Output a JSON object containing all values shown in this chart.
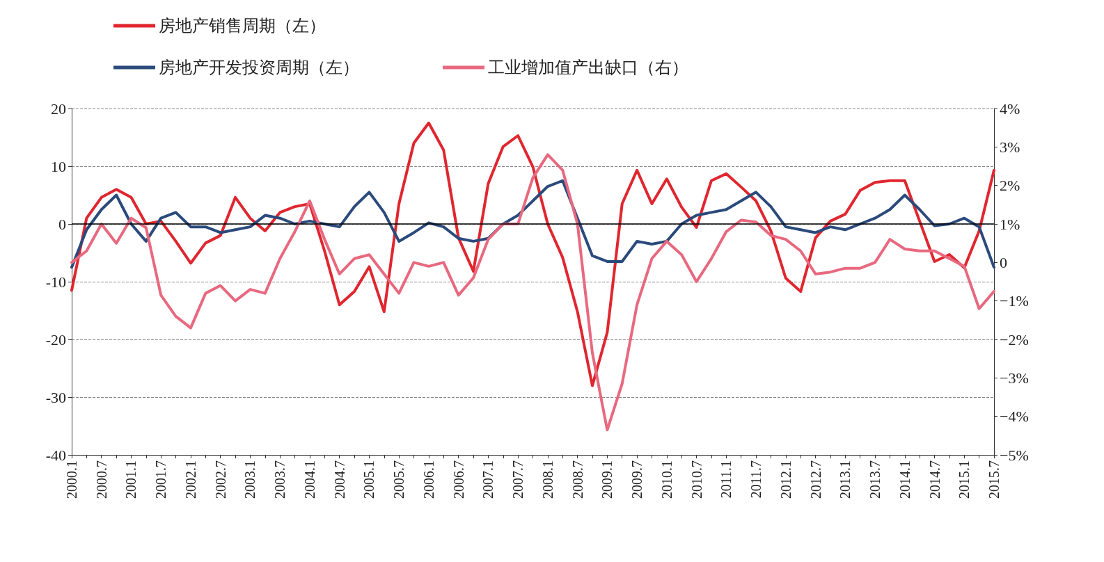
{
  "chart_data": {
    "type": "line",
    "categories": [
      "2000.1",
      null,
      "2000.7",
      null,
      "2001.1",
      null,
      "2001.7",
      null,
      "2002.1",
      null,
      "2002.7",
      null,
      "2003.1",
      null,
      "2003.7",
      null,
      "2004.1",
      null,
      "2004.7",
      null,
      "2005.1",
      null,
      "2005.7",
      null,
      "2006.1",
      null,
      "2006.7",
      null,
      "2007.1",
      null,
      "2007.7",
      null,
      "2008.1",
      null,
      "2008.7",
      null,
      "2009.1",
      null,
      "2009.7",
      null,
      "2010.1",
      null,
      "2010.7",
      null,
      "2011.1",
      null,
      "2011.7",
      null,
      "2012.1",
      null,
      "2012.7",
      null,
      "2013.1",
      null,
      "2013.7",
      null,
      "2014.1",
      null,
      "2014.7",
      null,
      "2015.1",
      null,
      "2015.7"
    ],
    "series": [
      {
        "name": "房地产销售周期（左）",
        "color": "#e0262f",
        "values": [
          -11.5,
          1,
          4.6,
          6,
          4.6,
          0,
          0.5,
          -3,
          -6.8,
          -3.3,
          -2,
          4.6,
          1,
          -1.2,
          2,
          3,
          3.5,
          -4.7,
          -14,
          -11.7,
          -7.4,
          -15.2,
          3.5,
          14,
          17.5,
          12.8,
          -2.4,
          -8.2,
          7,
          13.4,
          15.3,
          9.9,
          0,
          -5.8,
          -15.2,
          -28,
          -18.8,
          3.5,
          9.3,
          3.5,
          7.8,
          2.9,
          -0.6,
          7.5,
          8.7,
          6.4,
          4,
          -1.2,
          -9.4,
          -11.7,
          -2.4,
          0.5,
          1.7,
          5.8,
          7.2,
          7.5,
          7.5,
          0.5,
          -6.5,
          -5.3,
          -7.6,
          -1.2,
          9.3
        ]
      },
      {
        "name": "房地产开发投资周期（左）",
        "color": "#2b4a7c",
        "values": [
          -7.5,
          -1,
          2.5,
          5,
          0,
          -3,
          1,
          2,
          -0.5,
          -0.5,
          -1.5,
          -1,
          -0.5,
          1.5,
          1,
          0,
          0.5,
          0,
          -0.5,
          3,
          5.5,
          2,
          -3,
          -1.5,
          0.2,
          -0.5,
          -2.5,
          -3,
          -2.5,
          0,
          1.5,
          4,
          6.5,
          7.5,
          1,
          -5.5,
          -6.5,
          -6.5,
          -3,
          -3.5,
          -3,
          0,
          1.5,
          2,
          2.5,
          4,
          5.5,
          3,
          -0.5,
          -1,
          -1.5,
          -0.5,
          -1,
          0,
          1,
          2.5,
          5,
          2.5,
          -0.3,
          0,
          1,
          -0.5,
          -7.5
        ]
      },
      {
        "name": "工业增加值产出缺口（右）",
        "color": "#e8697f",
        "axis": "y2",
        "values": [
          0,
          0.3,
          1,
          0.5,
          1.15,
          0.9,
          -0.85,
          -1.4,
          -1.7,
          -0.8,
          -0.6,
          -1,
          -0.7,
          -0.8,
          0.1,
          0.8,
          1.6,
          0.6,
          -0.3,
          0.1,
          0.2,
          -0.3,
          -0.8,
          0,
          -0.1,
          0,
          -0.85,
          -0.4,
          0.6,
          1,
          1,
          2.2,
          2.8,
          2.4,
          1,
          -2.35,
          -4.35,
          -3.15,
          -1.1,
          0.1,
          0.55,
          0.2,
          -0.5,
          0.1,
          0.8,
          1.1,
          1.05,
          0.7,
          0.6,
          0.3,
          -0.3,
          -0.25,
          -0.15,
          -0.15,
          0,
          0.6,
          0.35,
          0.3,
          0.3,
          0.1,
          -0.1,
          -1.2,
          -0.75
        ]
      }
    ],
    "ylim": [
      -40,
      20
    ],
    "yticks": [
      -40,
      -30,
      -20,
      -10,
      0,
      10,
      20
    ],
    "y2lim": [
      -5,
      4
    ],
    "y2ticks": [
      {
        "value": -5,
        "label": "−5%"
      },
      {
        "value": -4,
        "label": "−4%"
      },
      {
        "value": -3,
        "label": "−3%"
      },
      {
        "value": -2,
        "label": "−2%"
      },
      {
        "value": -1,
        "label": "−1%"
      },
      {
        "value": 0,
        "label": "0"
      },
      {
        "value": 1,
        "label": "1%"
      },
      {
        "value": 2,
        "label": "2%"
      },
      {
        "value": 3,
        "label": "3%"
      },
      {
        "value": 4,
        "label": "4%"
      }
    ],
    "ref_lines": [
      {
        "axis": "y",
        "value": 0,
        "color": "#000000",
        "line_style": "solid"
      }
    ],
    "grid": "y",
    "legend": "top left",
    "marker": "none",
    "line_style": "solid"
  }
}
